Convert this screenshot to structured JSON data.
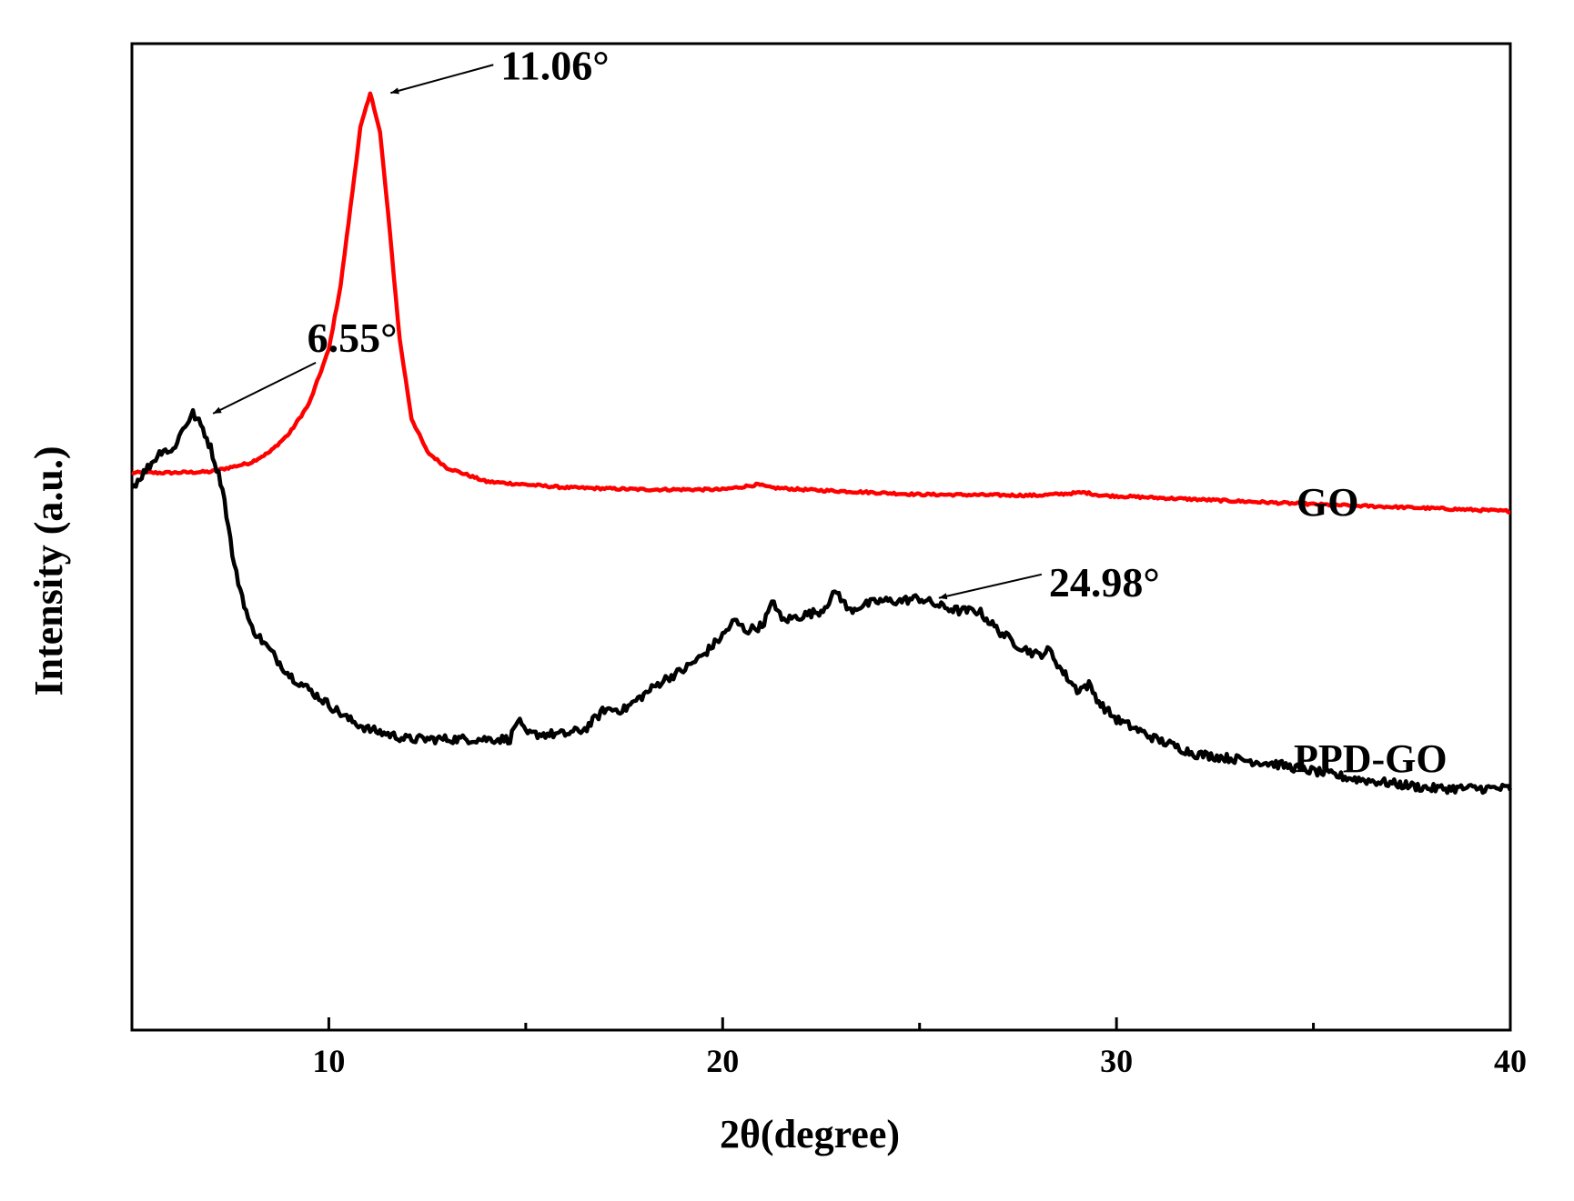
{
  "chart_data": {
    "type": "line",
    "title": "",
    "xlabel": "2θ(degree)",
    "ylabel": "Intensity (a.u.)",
    "xlim": [
      5,
      40
    ],
    "ylim": [
      0,
      100
    ],
    "xticks": [
      10,
      20,
      30,
      40
    ],
    "grid": false,
    "series": [
      {
        "name": "GO",
        "color": "#ff0000",
        "x": [
          5,
          6,
          7,
          8,
          8.5,
          9,
          9.5,
          10,
          10.3,
          10.6,
          10.8,
          11.06,
          11.3,
          11.5,
          11.8,
          12.1,
          12.5,
          13,
          14,
          16,
          18,
          20,
          20.9,
          21.2,
          22,
          25,
          28,
          29.2,
          29.6,
          32,
          35,
          38,
          40
        ],
        "values": [
          56.5,
          56.5,
          56.6,
          57.5,
          58.6,
          60.5,
          63.5,
          69,
          75.5,
          85,
          91.5,
          95,
          91,
          83,
          70,
          62,
          58.6,
          57,
          55.6,
          55,
          54.8,
          54.8,
          55.3,
          55,
          54.8,
          54.3,
          54.2,
          54.5,
          54.2,
          53.8,
          53.3,
          52.9,
          52.6
        ]
      },
      {
        "name": "PPD-GO",
        "color": "#000000",
        "x": [
          5,
          5.2,
          5.5,
          5.8,
          6.0,
          6.3,
          6.55,
          6.8,
          7.0,
          7.3,
          7.6,
          8.0,
          8.5,
          9.0,
          9.5,
          10,
          10.5,
          11,
          11.5,
          12,
          13,
          14,
          14.6,
          14.8,
          15,
          15.5,
          16,
          16.5,
          17,
          17.5,
          18,
          18.5,
          19,
          19.5,
          20,
          20.3,
          20.6,
          21,
          21.3,
          21.5,
          22,
          22.5,
          22.9,
          23.2,
          23.5,
          24,
          24.5,
          24.98,
          25.5,
          26,
          26.5,
          27,
          27.5,
          28,
          28.3,
          28.6,
          29,
          29.3,
          29.6,
          30,
          31,
          32,
          34,
          36,
          37,
          38,
          40
        ],
        "values": [
          55,
          56,
          57.5,
          59,
          58.5,
          61,
          62.5,
          61,
          59,
          55,
          47,
          41,
          38.5,
          36,
          34.5,
          33,
          31.5,
          30.5,
          30,
          29.5,
          29.5,
          29.5,
          29.5,
          31.5,
          30,
          30,
          30,
          30.5,
          32.5,
          32.5,
          34,
          35.5,
          36.5,
          38,
          40,
          41.5,
          40.5,
          41,
          43.5,
          41.5,
          42,
          42.5,
          44.5,
          42.5,
          43,
          43.5,
          43.5,
          43.8,
          43,
          42.5,
          42.5,
          40.5,
          39,
          38,
          38.5,
          36.5,
          34.5,
          35,
          33,
          31.5,
          29.5,
          28,
          27,
          25.5,
          25,
          24.5,
          24.5
        ]
      }
    ],
    "series_labels": [
      "GO",
      "PPD-GO"
    ],
    "annotations": [
      {
        "text": "11.06°",
        "series": "GO",
        "x": 11.06
      },
      {
        "text": "6.55°",
        "series": "PPD-GO",
        "x": 6.55
      },
      {
        "text": "24.98°",
        "series": "PPD-GO",
        "x": 24.98
      }
    ]
  }
}
